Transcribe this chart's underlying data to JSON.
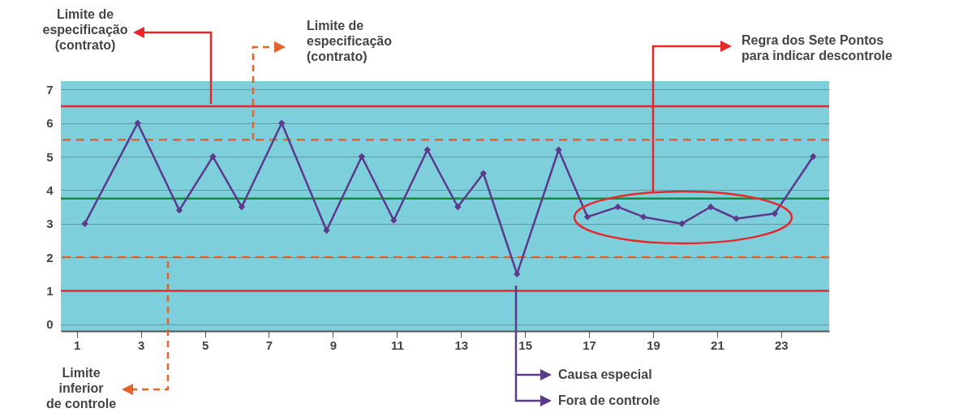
{
  "chart_data": {
    "type": "line",
    "x": [
      1.25,
      2.9,
      4.2,
      5.25,
      6.15,
      7.4,
      8.8,
      9.9,
      10.9,
      11.95,
      12.9,
      13.7,
      14.75,
      16.05,
      16.95,
      17.9,
      18.7,
      19.9,
      20.8,
      21.6,
      22.8,
      24.0
    ],
    "series": [
      {
        "color": "#5b3a8c",
        "values": [
          3,
          6,
          3.4,
          5,
          3.5,
          6,
          2.8,
          5,
          3.1,
          5.2,
          3.5,
          4.5,
          1.5,
          5.2,
          3.2,
          3.5,
          3.2,
          3,
          3.5,
          3.15,
          3.3,
          5
        ]
      }
    ],
    "xlim": [
      0.5,
      24.5
    ],
    "xticks": [
      1,
      3,
      5,
      7,
      9,
      11,
      13,
      15,
      17,
      19,
      21,
      23
    ],
    "ylim": [
      -0.2,
      7.25
    ],
    "yticks": [
      0,
      1,
      2,
      3,
      4,
      5,
      6,
      7
    ],
    "grid": "y",
    "marker": "diamond",
    "line_style": "solid",
    "ref_lines": [
      {
        "axis": "y",
        "value": 6.5,
        "color": "#e8272a",
        "line_style": "solid"
      },
      {
        "axis": "y",
        "value": 5.5,
        "color": "#e8602a",
        "line_style": "dashed"
      },
      {
        "axis": "y",
        "value": 3.75,
        "color": "#1a8a3a",
        "line_style": "solid"
      },
      {
        "axis": "y",
        "value": 2,
        "color": "#e8602a",
        "line_style": "dashed"
      },
      {
        "axis": "y",
        "value": 1,
        "color": "#e8272a",
        "line_style": "solid"
      }
    ],
    "annotations": [
      "Limite de\nespecificação\n(contrato)",
      "Limite de\nespecificação\n(contrato)",
      "Regra dos Sete Pontos\npara indicar descontrole",
      "Limite\ninferior\nde controle",
      "Causa especial",
      "Fora de controle"
    ]
  }
}
